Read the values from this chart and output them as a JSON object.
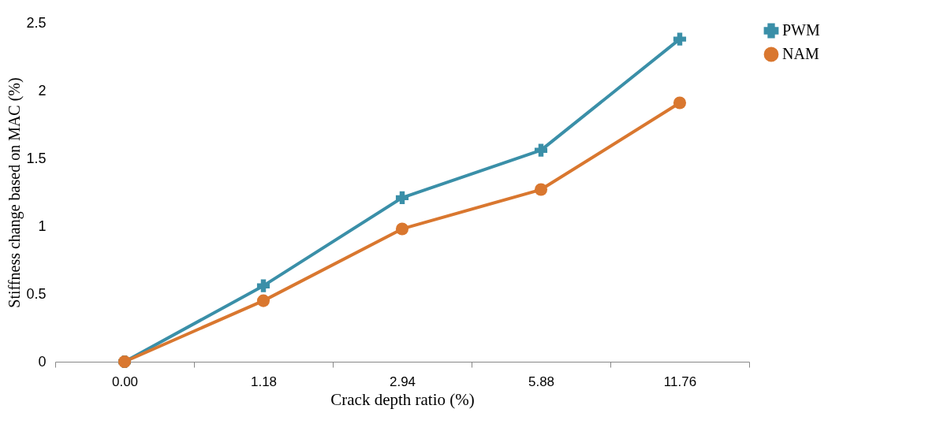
{
  "chart_data": {
    "type": "line",
    "xlabel": "Crack depth ratio (%)",
    "ylabel": "Stiffness change based on MAC (%)",
    "categories": [
      "0.00",
      "1.18",
      "2.94",
      "5.88",
      "11.76"
    ],
    "series": [
      {
        "name": "PWM",
        "color": "#3a8fa8",
        "marker": "cross",
        "values": [
          0,
          0.56,
          1.21,
          1.56,
          2.38
        ]
      },
      {
        "name": "NAM",
        "color": "#d9772f",
        "marker": "circle",
        "values": [
          0,
          0.45,
          0.98,
          1.27,
          1.91
        ]
      }
    ],
    "ylim": [
      0,
      2.5
    ],
    "yticks": [
      0,
      0.5,
      1,
      1.5,
      2,
      2.5
    ],
    "grid": false,
    "legend": "right"
  }
}
